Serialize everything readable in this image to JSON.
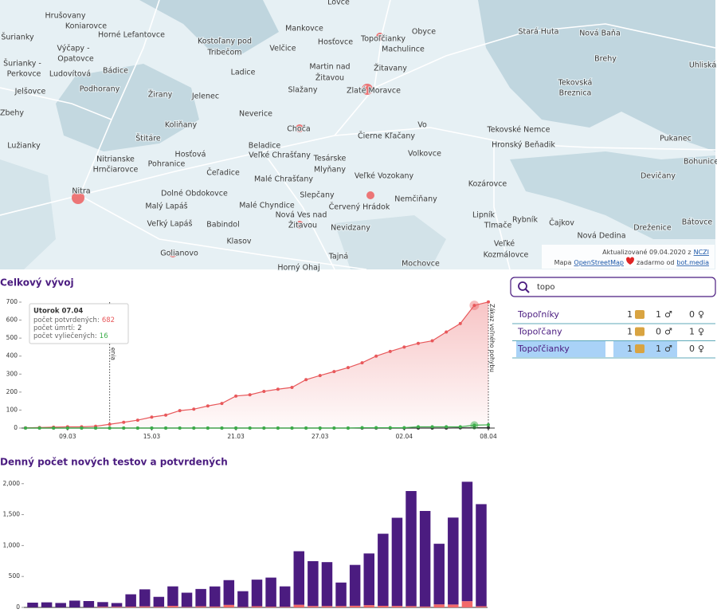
{
  "map": {
    "labels": [
      "Hrušovany",
      "Koniarovce",
      "Horné Lefantovce",
      "Šurianky",
      "Výčapy -",
      "Opatovce",
      "Šurianky -",
      "Perkovce",
      "Ludovítová",
      "Bádice",
      "Jelšovce",
      "Podhorany",
      "Žirany",
      "Jelenec",
      "Zbehy",
      "Koliňany",
      "Štitáre",
      "Lužianky",
      "Nitrianske",
      "Hrnčiarovce",
      "Hosťová",
      "Pohranice",
      "Čeľadice",
      "Nitra",
      "Dolné Obdokovce",
      "Malý Lapáš",
      "Veľký Lapáš",
      "Babindol",
      "Klasov",
      "Golianovo",
      "Lovce",
      "Mankovce",
      "Kostoľany pod",
      "Tribečom",
      "Hosťovce",
      "Topoľčianky",
      "Obyce",
      "Machulince",
      "Velčice",
      "Ladice",
      "Martin nad",
      "Žitavou",
      "Žitavany",
      "Slažany",
      "Zlaté Moravce",
      "Neverice",
      "Choča",
      "Vo",
      "Čierne Kľačany",
      "Beladice",
      "Veľké Chrašťany",
      "Tesárske",
      "Mlyňany",
      "Volkovce",
      "Malé Chrašťany",
      "Veľké Vozokany",
      "Slepčany",
      "Nemčiňany",
      "Malé Chyndice",
      "Červený Hrádok",
      "Nová Ves nad",
      "Žitavou",
      "Nevidzany",
      "Tajná",
      "Horný Ohaj",
      "Mochovce",
      "Stará Huta",
      "Nová Baňa",
      "Brehy",
      "Uhliská",
      "Tekovská",
      "Breznica",
      "Tekovské Nemce",
      "Hronský Beňadik",
      "Pukanec",
      "Bohunice",
      "Kozárovce",
      "Devičany",
      "Lipník",
      "Rybník",
      "Tlmače",
      "Čajkov",
      "Dreženice",
      "Bátovce",
      "Nová Dedina",
      "Veľké",
      "Kozmálovce"
    ],
    "attribution": {
      "updated": "Aktualizované 09.04.2020 z",
      "updated_link": "NCZI",
      "map": "Mapa",
      "osm_link": "OpenStreetMap",
      "free_from": "zadarmo od",
      "bot_link": "bot.media"
    }
  },
  "search": {
    "query": "topo",
    "male_symbol": "♂",
    "female_symbol": "♀",
    "selected": 2,
    "results": [
      {
        "name": "Topoľníky",
        "count": 1,
        "male": 1,
        "female": 0
      },
      {
        "name": "Topoľčany",
        "count": 1,
        "male": 0,
        "female": 1
      },
      {
        "name": "Topoľčianky",
        "count": 1,
        "male": 1,
        "female": 0
      }
    ]
  },
  "chart_data": [
    {
      "type": "line",
      "title": "Celkový vývoj",
      "categories": [
        null,
        null,
        null,
        "09.03",
        null,
        null,
        null,
        null,
        null,
        "15.03",
        null,
        null,
        null,
        null,
        null,
        "21.03",
        null,
        null,
        null,
        null,
        null,
        "27.03",
        null,
        null,
        null,
        null,
        null,
        "02.04",
        null,
        null,
        null,
        null,
        null,
        "08.04"
      ],
      "series": [
        {
          "name": "počet potvrdených:",
          "color": "#e8585b",
          "area": true,
          "values": [
            1,
            3,
            5,
            7,
            7,
            10,
            21,
            32,
            44,
            61,
            72,
            97,
            105,
            123,
            137,
            178,
            185,
            204,
            216,
            226,
            269,
            292,
            314,
            336,
            363,
            400,
            426,
            450,
            471,
            485,
            534,
            581,
            682,
            701
          ]
        },
        {
          "name": "počet úmrtí:",
          "color": "#333333",
          "values": [
            0,
            0,
            0,
            0,
            0,
            0,
            0,
            0,
            0,
            0,
            0,
            0,
            0,
            0,
            0,
            0,
            0,
            0,
            0,
            0,
            0,
            0,
            0,
            0,
            0,
            0,
            0,
            0,
            0,
            0,
            0,
            1,
            2,
            2
          ]
        },
        {
          "name": "počet vyliečených:",
          "color": "#3cae4a",
          "values": [
            0,
            0,
            0,
            0,
            0,
            0,
            0,
            0,
            0,
            0,
            0,
            0,
            0,
            0,
            0,
            0,
            0,
            0,
            0,
            0,
            0,
            0,
            0,
            0,
            2,
            2,
            2,
            2,
            7,
            7,
            7,
            7,
            16,
            18
          ]
        }
      ],
      "tooltip": {
        "title": "Utorok 07.04"
      },
      "annotations": [
        "enia",
        "Zákaz voľného pohybu"
      ],
      "ylim": [
        0,
        700
      ],
      "yticks": [
        0,
        100,
        200,
        300,
        400,
        500,
        600,
        700
      ]
    },
    {
      "type": "bar",
      "stacked": true,
      "title": "Denný počet nových testov a potvrdených",
      "series": [
        {
          "color": "#f26a6a",
          "values": [
            2,
            2,
            2,
            0,
            3,
            11,
            11,
            12,
            17,
            11,
            25,
            8,
            18,
            14,
            41,
            7,
            19,
            12,
            10,
            43,
            23,
            22,
            22,
            27,
            37,
            26,
            24,
            21,
            14,
            49,
            47,
            101,
            19
          ]
        },
        {
          "color": "#4b1c80",
          "values": [
            75,
            80,
            70,
            110,
            100,
            75,
            60,
            200,
            275,
            160,
            315,
            230,
            280,
            325,
            400,
            255,
            430,
            470,
            330,
            865,
            725,
            710,
            380,
            660,
            835,
            1165,
            1425,
            1860,
            1545,
            980,
            1405,
            1930,
            1650
          ]
        }
      ],
      "ylim": [
        0,
        2100
      ],
      "yticks": [
        0,
        500,
        {
          "value": 1000,
          "label": "1,000"
        },
        {
          "value": 1500,
          "label": "1,500"
        },
        {
          "value": 2000,
          "label": "2,000"
        }
      ]
    }
  ]
}
